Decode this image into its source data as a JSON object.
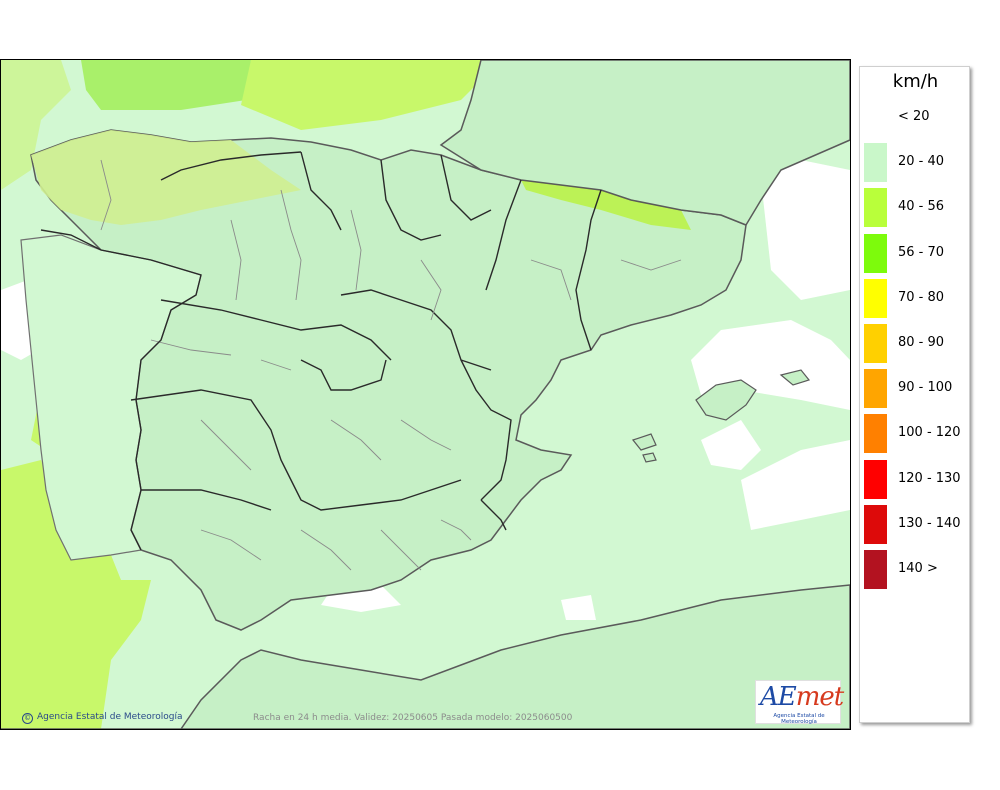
{
  "legend": {
    "unit": "km/h",
    "classes": [
      {
        "label": "< 20",
        "color": "#ffffff"
      },
      {
        "label": "20 - 40",
        "color": "#c9f7c9"
      },
      {
        "label": "40 - 56",
        "color": "#b9ff3a"
      },
      {
        "label": "56 - 70",
        "color": "#7dfb0c"
      },
      {
        "label": "70 - 80",
        "color": "#ffff00"
      },
      {
        "label": "80 - 90",
        "color": "#ffd000"
      },
      {
        "label": "90 - 100",
        "color": "#ffa500"
      },
      {
        "label": "100 - 120",
        "color": "#ff8000"
      },
      {
        "label": "120 - 130",
        "color": "#ff0000"
      },
      {
        "label": "130 - 140",
        "color": "#dd0a0a"
      },
      {
        "label": "140 >",
        "color": "#b31220"
      }
    ]
  },
  "footer": {
    "credit": "Agencia Estatal de Meteorología",
    "caption": "Racha en 24 h media. Validez: 20250605 Pasada modelo: 2025060500"
  },
  "logo": {
    "text_ae": "AE",
    "text_met": "met",
    "subtitle": "Agencia Estatal de Meteorología"
  },
  "map": {
    "background_color": "#d2f8d2",
    "land_color": "#c6f0c6",
    "calm_color": "#ffffff",
    "moderate_color": "#c8f86a"
  }
}
